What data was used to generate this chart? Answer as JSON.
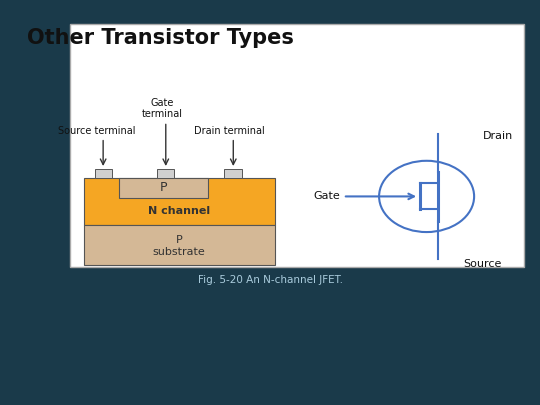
{
  "title": "Other Transistor Types",
  "subtitle": "Fig. 5-20 An N-channel JFET.",
  "bg_color": "#1a3a4a",
  "orange_color": "#f5a623",
  "p_region_color": "#d4b896",
  "n_channel_color": "#f5a623",
  "jfet_circle_color": "#4472c4",
  "title_color": "#111111",
  "subtitle_color": "#aaccdd",
  "text_dark": "#111111",
  "text_mid": "#333333",
  "labels": {
    "source_terminal": "Source terminal",
    "gate_terminal": "Gate\nterminal",
    "drain_terminal": "Drain terminal",
    "p_region": "P",
    "n_channel": "N channel",
    "p_substrate": "P\nsubstrate",
    "drain": "Drain",
    "gate": "Gate",
    "source": "Source"
  }
}
